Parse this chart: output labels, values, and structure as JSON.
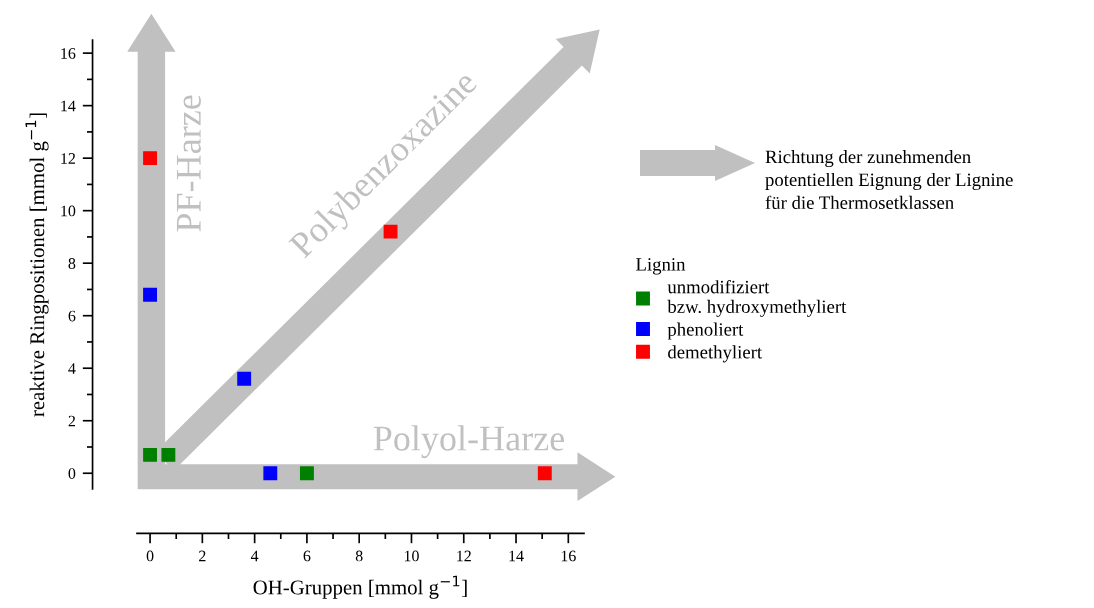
{
  "chart_data": {
    "type": "scatter",
    "xlabel": "OH-Gruppen [mmol g$^{−1}$]",
    "ylabel": "reaktive Ringpositionen [mmol g$^{−1}$]",
    "legend_title": "Lignin",
    "series": [
      {
        "name": "unmodifiziert\nbzw. hydroxymethyliert",
        "color": "#008000",
        "x": [
          0,
          0.7,
          6
        ],
        "values": [
          0.7,
          0.7,
          0
        ]
      },
      {
        "name": "phenoliert",
        "color": "#0000ff",
        "x": [
          0,
          3.6,
          4.6
        ],
        "values": [
          6.8,
          3.6,
          0
        ]
      },
      {
        "name": "demethyliert",
        "color": "#ff0000",
        "x": [
          0,
          9.2,
          15.1
        ],
        "values": [
          12,
          9.2,
          0
        ]
      }
    ],
    "annotations": [
      "PF-Harze",
      "Polybenzoxazine",
      "Polyol-Harze",
      "Richtung der zunehmenden\npotentiellen Eignung der Lignine\nfür die Thermosetklassen"
    ],
    "xlim": [
      -0.5,
      16.6
    ],
    "ylim": [
      -0.6,
      16.5
    ],
    "xticks": [
      0,
      2,
      4,
      6,
      8,
      10,
      12,
      14,
      16
    ],
    "yticks": [
      0,
      2,
      4,
      6,
      8,
      10,
      12,
      14,
      16
    ],
    "marker": "square",
    "legend": "right",
    "grid": false
  }
}
